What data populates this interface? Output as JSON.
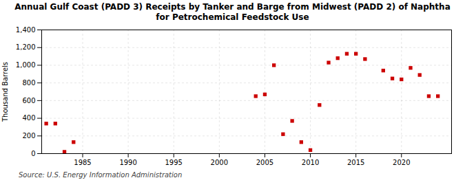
{
  "chart_data": {
    "type": "scatter",
    "title": "Annual Gulf Coast (PADD 3) Receipts by Tanker and Barge from Midwest (PADD 2) of Naphtha\nfor Petrochemical Feedstock Use",
    "ylabel": "Thousand Barrels",
    "source": "Source: U.S. Energy Information Administration",
    "x": [
      1981,
      1982,
      1983,
      1984,
      2004,
      2005,
      2006,
      2007,
      2008,
      2009,
      2010,
      2011,
      2012,
      2013,
      2014,
      2015,
      2016,
      2018,
      2019,
      2020,
      2021,
      2022,
      2023,
      2024
    ],
    "values": [
      340,
      340,
      20,
      130,
      650,
      670,
      1000,
      220,
      370,
      130,
      40,
      550,
      1030,
      1080,
      1130,
      1130,
      1070,
      940,
      850,
      840,
      970,
      890,
      650,
      650
    ],
    "color": "#cc0000",
    "marker": "square",
    "xlim": [
      1980.5,
      2025.5
    ],
    "ylim": [
      0,
      1400
    ],
    "xticks": [
      1985,
      1990,
      1995,
      2000,
      2005,
      2010,
      2015,
      2020
    ],
    "yticks": [
      0,
      200,
      400,
      600,
      800,
      {
        "value": 1000,
        "label": "1,000"
      },
      {
        "value": 1200,
        "label": "1,200"
      },
      {
        "value": 1400,
        "label": "1,400"
      }
    ],
    "grid": true
  }
}
